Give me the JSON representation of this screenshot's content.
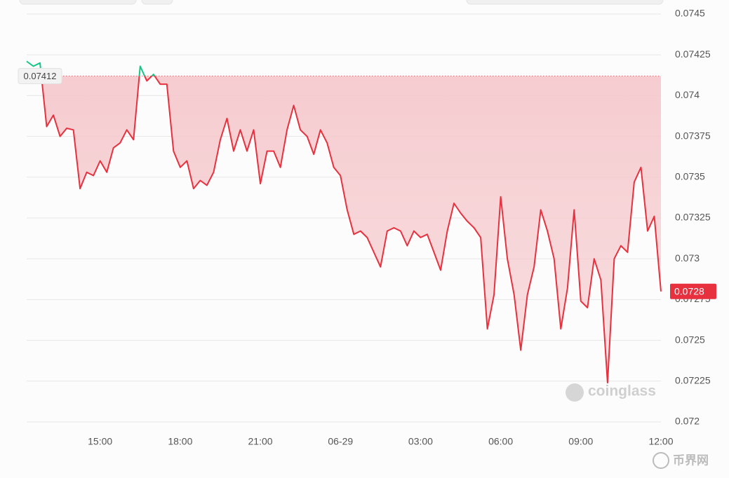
{
  "chart_data": {
    "type": "line",
    "categories": [
      null,
      null,
      null,
      null,
      null,
      null,
      null,
      null,
      null,
      null,
      null,
      "15:00",
      null,
      null,
      null,
      null,
      null,
      null,
      null,
      null,
      null,
      null,
      null,
      "18:00",
      null,
      null,
      null,
      null,
      null,
      null,
      null,
      null,
      null,
      null,
      null,
      "21:00",
      null,
      null,
      null,
      null,
      null,
      null,
      null,
      null,
      null,
      null,
      null,
      "06-29",
      null,
      null,
      null,
      null,
      null,
      null,
      null,
      null,
      null,
      null,
      null,
      "03:00",
      null,
      null,
      null,
      null,
      null,
      null,
      null,
      null,
      null,
      null,
      null,
      "06:00",
      null,
      null,
      null,
      null,
      null,
      null,
      null,
      null,
      null,
      null,
      null,
      "09:00",
      null,
      null,
      null,
      null,
      null,
      null,
      null,
      null,
      null,
      null,
      null,
      "12:00"
    ],
    "series": [
      {
        "color": "#e8313e",
        "up_color": "#16c784",
        "values": [
          0.07421,
          0.07418,
          0.0742,
          0.07381,
          0.07388,
          0.07375,
          0.0738,
          0.07379,
          0.07343,
          0.07353,
          0.07351,
          0.0736,
          0.07353,
          0.07368,
          0.07371,
          0.07379,
          0.07373,
          0.07418,
          0.07409,
          0.07413,
          0.07407,
          0.07407,
          0.07366,
          0.07356,
          0.0736,
          0.07343,
          0.07348,
          0.07345,
          0.07353,
          0.07373,
          0.07386,
          0.07366,
          0.07379,
          0.07366,
          0.07379,
          0.07346,
          0.07366,
          0.07366,
          0.07356,
          0.07379,
          0.07394,
          0.07379,
          0.07375,
          0.07364,
          0.07379,
          0.07371,
          0.07356,
          0.07351,
          0.0733,
          0.07315,
          0.07317,
          0.07313,
          0.07304,
          0.07295,
          0.07317,
          0.07319,
          0.07317,
          0.07308,
          0.07317,
          0.07313,
          0.07315,
          0.07304,
          0.07293,
          0.07317,
          0.07334,
          0.07328,
          0.07323,
          0.07319,
          0.07313,
          0.07257,
          0.07278,
          0.07338,
          0.073,
          0.07278,
          0.07244,
          0.07278,
          0.07295,
          0.0733,
          0.07317,
          0.073,
          0.07257,
          0.07282,
          0.0733,
          0.07274,
          0.0727,
          0.073,
          0.07287,
          0.07224,
          0.073,
          0.07308,
          0.07304,
          0.07347,
          0.07356,
          0.07317,
          0.07326,
          0.0728
        ]
      }
    ],
    "baseline": 0.07412,
    "ylim": [
      0.072,
      0.0745
    ],
    "yticks": [
      0.0745,
      0.07425,
      0.074,
      0.07375,
      0.0735,
      0.07325,
      0.073,
      0.07275,
      0.0725,
      0.07225,
      0.072
    ],
    "grid": true,
    "watermark": "coinglass",
    "credit": "币界网"
  }
}
